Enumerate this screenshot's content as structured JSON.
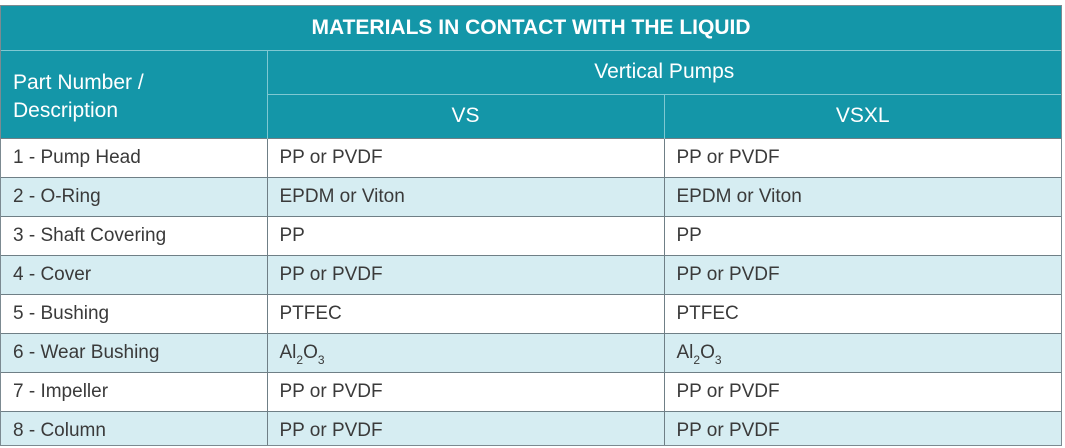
{
  "table": {
    "title": "MATERIALS IN CONTACT WITH THE LIQUID",
    "desc_header_line1": "Part Number /",
    "desc_header_line2": "Description",
    "group_header": "Vertical Pumps",
    "col_vs": "VS",
    "col_vsxl": "VSXL",
    "rows": [
      {
        "part": "1 - Pump Head",
        "vs": "PP or PVDF",
        "vsxl": "PP or PVDF"
      },
      {
        "part": "2 - O-Ring",
        "vs": "EPDM or Viton",
        "vsxl": "EPDM or Viton"
      },
      {
        "part": "3 - Shaft Covering",
        "vs": "PP",
        "vsxl": "PP"
      },
      {
        "part": "4 - Cover",
        "vs": "PP or PVDF",
        "vsxl": "PP or PVDF"
      },
      {
        "part": "5 - Bushing",
        "vs": "PTFEC",
        "vsxl": "PTFEC"
      },
      {
        "part": "6 - Wear Bushing",
        "vs": "Al2O3",
        "vsxl": "Al2O3"
      },
      {
        "part": "7 - Impeller",
        "vs": "PP or PVDF",
        "vsxl": "PP or PVDF"
      },
      {
        "part": "8 - Column",
        "vs": "PP or PVDF",
        "vsxl": "PP or PVDF"
      }
    ],
    "colors": {
      "header_bg": "#1496a8",
      "alt_row_bg": "#d6edf2",
      "text": "#3a3a3a"
    }
  }
}
